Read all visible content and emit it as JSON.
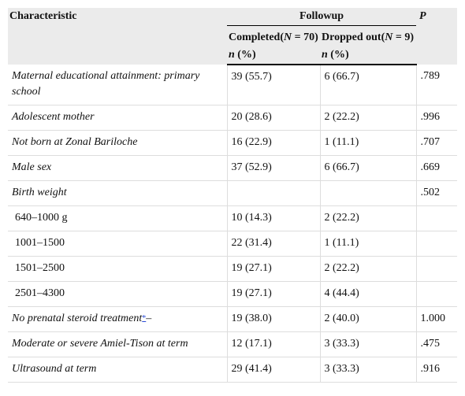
{
  "header": {
    "characteristic": "Characteristic",
    "followup": "Followup",
    "p": "P",
    "completed": [
      "Completed(",
      "N",
      " = 70)"
    ],
    "dropped": [
      "Dropped out(",
      "N",
      " = 9)"
    ],
    "unit_completed": [
      "n",
      " (%)"
    ],
    "unit_dropped": [
      "n",
      " (%)"
    ]
  },
  "rows": [
    {
      "label": "Maternal educational attainment: primary school",
      "completed": "39 (55.7)",
      "dropped": "6 (66.7)",
      "p": ".789"
    },
    {
      "label": "Adolescent mother",
      "completed": "20 (28.6)",
      "dropped": "2 (22.2)",
      "p": ".996"
    },
    {
      "label": "Not born at Zonal Bariloche",
      "completed": "16 (22.9)",
      "dropped": "1 (11.1)",
      "p": ".707"
    },
    {
      "label": "Male sex",
      "completed": "37 (52.9)",
      "dropped": "6 (66.7)",
      "p": ".669"
    },
    {
      "label": "Birth weight",
      "p": ".502"
    },
    {
      "label": "640–1000 g",
      "completed": "10 (14.3)",
      "dropped": "2 (22.2)"
    },
    {
      "label": "1001–1500",
      "completed": "22 (31.4)",
      "dropped": "1 (11.1)"
    },
    {
      "label": "1501–2500",
      "completed": "19 (27.1)",
      "dropped": "2 (22.2)"
    },
    {
      "label": "2501–4300",
      "completed": "19 (27.1)",
      "dropped": "4 (44.4)"
    },
    {
      "label": "No prenatal steroid treatment",
      "note": "*",
      "suffix": "–",
      "completed": "19 (38.0)",
      "dropped": "2 (40.0)",
      "p": "1.000"
    },
    {
      "label": "Moderate or severe Amiel-Tison at term",
      "completed": "12 (17.1)",
      "dropped": "3 (33.3)",
      "p": ".475"
    },
    {
      "label": "Ultrasound at term",
      "completed": "29 (41.4)",
      "dropped": "3 (33.3)",
      "p": ".916"
    }
  ]
}
